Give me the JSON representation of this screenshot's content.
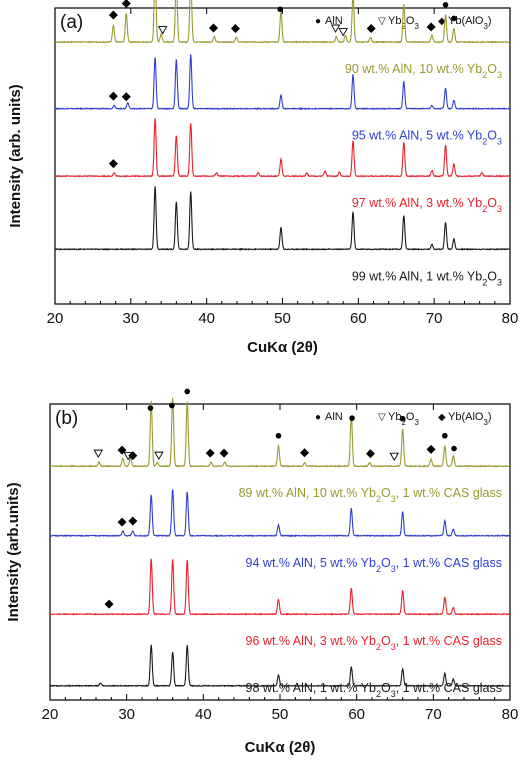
{
  "chart_data": [
    {
      "type": "line",
      "panel_label": "(a)",
      "xlabel": "CuKα (2θ)",
      "ylabel": "Intensity (arb. units)",
      "xlim": [
        20,
        80
      ],
      "x_ticks": [
        20,
        30,
        40,
        50,
        60,
        70,
        80
      ],
      "legend": [
        {
          "marker": "●",
          "name": "AlN"
        },
        {
          "marker": "▽",
          "name": "Yb2O3"
        },
        {
          "marker": "◆",
          "name": "Yb(AlO3)"
        }
      ],
      "series": [
        {
          "name": "90 wt.% AlN, 10 wt.% Yb2O3",
          "color": "#9a9a2e",
          "baseline": 0.115,
          "peaks": [
            [
              27.7,
              0.25
            ],
            [
              29.4,
              0.42
            ],
            [
              33.2,
              1.0
            ],
            [
              34.0,
              0.12
            ],
            [
              36.0,
              0.9
            ],
            [
              37.9,
              0.95
            ],
            [
              41.0,
              0.08
            ],
            [
              43.9,
              0.07
            ],
            [
              49.8,
              0.45
            ],
            [
              57.1,
              0.08
            ],
            [
              58.3,
              0.1
            ],
            [
              59.3,
              0.7
            ],
            [
              61.6,
              0.07
            ],
            [
              66.0,
              0.55
            ],
            [
              69.7,
              0.1
            ],
            [
              71.5,
              0.4
            ],
            [
              72.6,
              0.2
            ]
          ],
          "markers": [
            [
              27.7,
              "diamond"
            ],
            [
              29.4,
              "diamond"
            ],
            [
              33.2,
              "circle"
            ],
            [
              34.2,
              "triangle"
            ],
            [
              36.0,
              "circle"
            ],
            [
              37.9,
              "circle"
            ],
            [
              40.9,
              "diamond"
            ],
            [
              43.8,
              "diamond"
            ],
            [
              49.7,
              "circle"
            ],
            [
              57.0,
              "triangle"
            ],
            [
              58.0,
              "triangle"
            ],
            [
              59.3,
              "circle"
            ],
            [
              61.7,
              "diamond"
            ],
            [
              66.0,
              "circle"
            ],
            [
              69.6,
              "diamond"
            ],
            [
              71.5,
              "circle"
            ],
            [
              72.6,
              "circle"
            ]
          ]
        },
        {
          "name": "95 wt.% AlN, 5 wt.% Yb2O3",
          "color": "#2e3fd0",
          "baseline": 0.34,
          "peaks": [
            [
              27.8,
              0.05
            ],
            [
              29.6,
              0.09
            ],
            [
              33.2,
              0.75
            ],
            [
              36.0,
              0.72
            ],
            [
              37.9,
              0.8
            ],
            [
              49.8,
              0.2
            ],
            [
              59.3,
              0.5
            ],
            [
              66.0,
              0.4
            ],
            [
              69.7,
              0.05
            ],
            [
              71.5,
              0.3
            ],
            [
              72.6,
              0.12
            ]
          ],
          "markers": [
            [
              27.7,
              "diamond"
            ],
            [
              29.4,
              "diamond"
            ]
          ]
        },
        {
          "name": "97 wt.% AlN, 3 wt.% Yb2O3",
          "color": "#e8212b",
          "baseline": 0.568,
          "peaks": [
            [
              27.8,
              0.05
            ],
            [
              33.2,
              0.85
            ],
            [
              36.0,
              0.6
            ],
            [
              37.9,
              0.78
            ],
            [
              41.3,
              0.05
            ],
            [
              46.8,
              0.05
            ],
            [
              49.8,
              0.25
            ],
            [
              53.2,
              0.05
            ],
            [
              55.6,
              0.07
            ],
            [
              57.5,
              0.06
            ],
            [
              59.3,
              0.52
            ],
            [
              66.0,
              0.5
            ],
            [
              69.7,
              0.08
            ],
            [
              71.5,
              0.45
            ],
            [
              72.6,
              0.18
            ],
            [
              76.3,
              0.05
            ]
          ],
          "markers": [
            [
              27.7,
              "diamond"
            ]
          ]
        },
        {
          "name": "99 wt.% AlN, 1 wt.% Yb2O3",
          "color": "#1a1a1a",
          "baseline": 0.815,
          "peaks": [
            [
              33.2,
              0.92
            ],
            [
              36.0,
              0.7
            ],
            [
              37.9,
              0.85
            ],
            [
              49.8,
              0.32
            ],
            [
              59.3,
              0.55
            ],
            [
              66.0,
              0.5
            ],
            [
              69.7,
              0.07
            ],
            [
              71.5,
              0.4
            ],
            [
              72.6,
              0.15
            ]
          ],
          "markers": []
        }
      ]
    },
    {
      "type": "line",
      "panel_label": "(b)",
      "xlabel": "CuKα (2θ)",
      "ylabel": "Intensity (arb.units)",
      "xlim": [
        20,
        80
      ],
      "x_ticks": [
        20,
        30,
        40,
        50,
        60,
        70,
        80
      ],
      "legend": [
        {
          "marker": "●",
          "name": "AlN"
        },
        {
          "marker": "▽",
          "name": "Yb2O3"
        },
        {
          "marker": "◆",
          "name": "Yb(AlO3)"
        }
      ],
      "series": [
        {
          "name": "89 wt.% AlN, 10 wt.% Yb2O3, 1 wt.% CAS glass",
          "color": "#9a9a2e",
          "baseline": 0.21,
          "peaks": [
            [
              26.4,
              0.06
            ],
            [
              29.5,
              0.12
            ],
            [
              30.5,
              0.12
            ],
            [
              33.2,
              0.95
            ],
            [
              34.0,
              0.05
            ],
            [
              36.0,
              1.0
            ],
            [
              37.9,
              0.95
            ],
            [
              41.0,
              0.06
            ],
            [
              42.8,
              0.06
            ],
            [
              49.8,
              0.3
            ],
            [
              53.2,
              0.05
            ],
            [
              59.3,
              0.75
            ],
            [
              61.7,
              0.05
            ],
            [
              66.0,
              0.55
            ],
            [
              69.7,
              0.1
            ],
            [
              71.5,
              0.3
            ],
            [
              72.6,
              0.15
            ]
          ],
          "markers": [
            [
              26.3,
              "triangle"
            ],
            [
              29.4,
              "diamond"
            ],
            [
              30.2,
              "triangle"
            ],
            [
              30.8,
              "diamond"
            ],
            [
              33.1,
              "circle"
            ],
            [
              34.2,
              "triangle"
            ],
            [
              35.9,
              "circle"
            ],
            [
              37.9,
              "circle"
            ],
            [
              40.9,
              "diamond"
            ],
            [
              42.7,
              "diamond"
            ],
            [
              49.8,
              "circle"
            ],
            [
              53.2,
              "diamond"
            ],
            [
              59.4,
              "circle"
            ],
            [
              61.8,
              "diamond"
            ],
            [
              64.9,
              "triangle"
            ],
            [
              66.0,
              "circle"
            ],
            [
              69.7,
              "diamond"
            ],
            [
              71.5,
              "circle"
            ],
            [
              72.7,
              "circle"
            ]
          ]
        },
        {
          "name": "94 wt.% AlN, 5 wt.% Yb2O3, 1 wt.% CAS glass",
          "color": "#2e3fd0",
          "baseline": 0.445,
          "peaks": [
            [
              29.5,
              0.07
            ],
            [
              30.8,
              0.07
            ],
            [
              33.2,
              0.6
            ],
            [
              36.0,
              0.68
            ],
            [
              37.9,
              0.65
            ],
            [
              49.8,
              0.16
            ],
            [
              59.3,
              0.4
            ],
            [
              66.0,
              0.35
            ],
            [
              71.5,
              0.22
            ],
            [
              72.6,
              0.1
            ]
          ],
          "markers": [
            [
              29.4,
              "diamond"
            ],
            [
              30.8,
              "diamond"
            ]
          ]
        },
        {
          "name": "96 wt.% AlN, 3 wt.% Yb2O3, 1 wt.% CAS glass",
          "color": "#e8212b",
          "baseline": 0.71,
          "peaks": [
            [
              33.2,
              0.82
            ],
            [
              36.0,
              0.8
            ],
            [
              37.9,
              0.8
            ],
            [
              49.8,
              0.22
            ],
            [
              59.3,
              0.38
            ],
            [
              66.0,
              0.35
            ],
            [
              71.5,
              0.25
            ],
            [
              72.6,
              0.1
            ]
          ],
          "markers": [
            [
              27.7,
              "diamond"
            ]
          ]
        },
        {
          "name": "98 wt.% AlN, 1 wt.% Yb2O3, 1 wt.% CAS glass",
          "color": "#1a1a1a",
          "baseline": 0.952,
          "peaks": [
            [
              26.6,
              0.04
            ],
            [
              33.2,
              0.6
            ],
            [
              36.0,
              0.5
            ],
            [
              37.9,
              0.6
            ],
            [
              49.8,
              0.16
            ],
            [
              59.3,
              0.28
            ],
            [
              66.0,
              0.25
            ],
            [
              71.5,
              0.18
            ],
            [
              72.6,
              0.1
            ]
          ],
          "markers": []
        }
      ]
    }
  ]
}
